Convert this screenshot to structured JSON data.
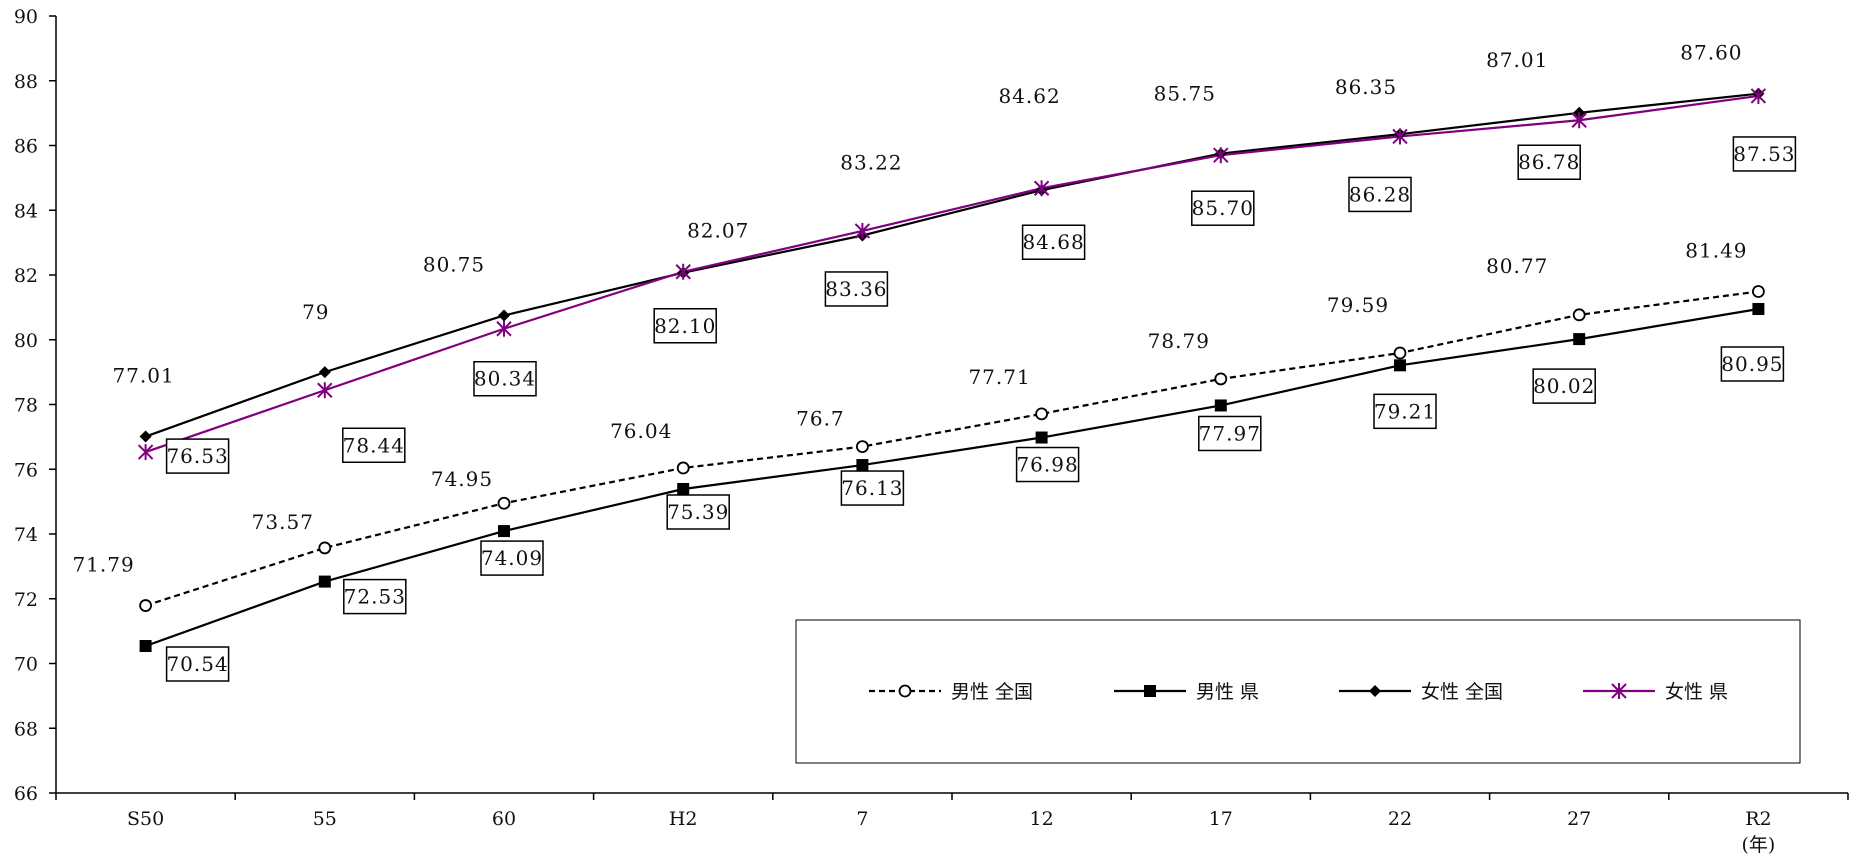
{
  "chart_data": {
    "type": "line",
    "categories": [
      "S50",
      "55",
      "60",
      "H2",
      "7",
      "12",
      "17",
      "22",
      "27",
      "R2"
    ],
    "x_unit_label": "(年)",
    "ylim": [
      66,
      90
    ],
    "y_ticks": [
      66,
      68,
      70,
      72,
      74,
      76,
      78,
      80,
      82,
      84,
      86,
      88,
      90
    ],
    "grid": false,
    "legend_position": "bottom-right",
    "series": [
      {
        "name": "男性 全国",
        "values": [
          71.79,
          73.57,
          74.95,
          76.04,
          76.7,
          77.71,
          78.79,
          79.59,
          80.77,
          81.49
        ],
        "labels": [
          "71.79",
          "73.57",
          "74.95",
          "76.04",
          "76.7",
          "77.71",
          "78.79",
          "79.59",
          "80.77",
          "81.49"
        ],
        "color": "#000000",
        "line": "dashed",
        "marker": "open-circle",
        "label_style": "plain"
      },
      {
        "name": "男性 県",
        "values": [
          70.54,
          72.53,
          74.09,
          75.39,
          76.13,
          76.98,
          77.97,
          79.21,
          80.02,
          80.95
        ],
        "labels": [
          "70.54",
          "72.53",
          "74.09",
          "75.39",
          "76.13",
          "76.98",
          "77.97",
          "79.21",
          "80.02",
          "80.95"
        ],
        "color": "#000000",
        "line": "solid",
        "marker": "filled-square",
        "label_style": "boxed"
      },
      {
        "name": "女性 全国",
        "values": [
          77.01,
          79,
          80.75,
          82.07,
          83.22,
          84.62,
          85.75,
          86.35,
          87.01,
          87.6
        ],
        "labels": [
          "77.01",
          "79",
          "80.75",
          "82.07",
          "83.22",
          "84.62",
          "85.75",
          "86.35",
          "87.01",
          "87.60"
        ],
        "color": "#000000",
        "line": "solid",
        "marker": "filled-diamond",
        "label_style": "plain"
      },
      {
        "name": "女性 県",
        "values": [
          76.53,
          78.44,
          80.34,
          82.1,
          83.36,
          84.68,
          85.7,
          86.28,
          86.78,
          87.53
        ],
        "labels": [
          "76.53",
          "78.44",
          "80.34",
          "82.10",
          "83.36",
          "84.68",
          "85.70",
          "86.28",
          "86.78",
          "87.53"
        ],
        "color": "#800080",
        "line": "solid",
        "marker": "asterisk",
        "label_style": "boxed"
      }
    ]
  }
}
